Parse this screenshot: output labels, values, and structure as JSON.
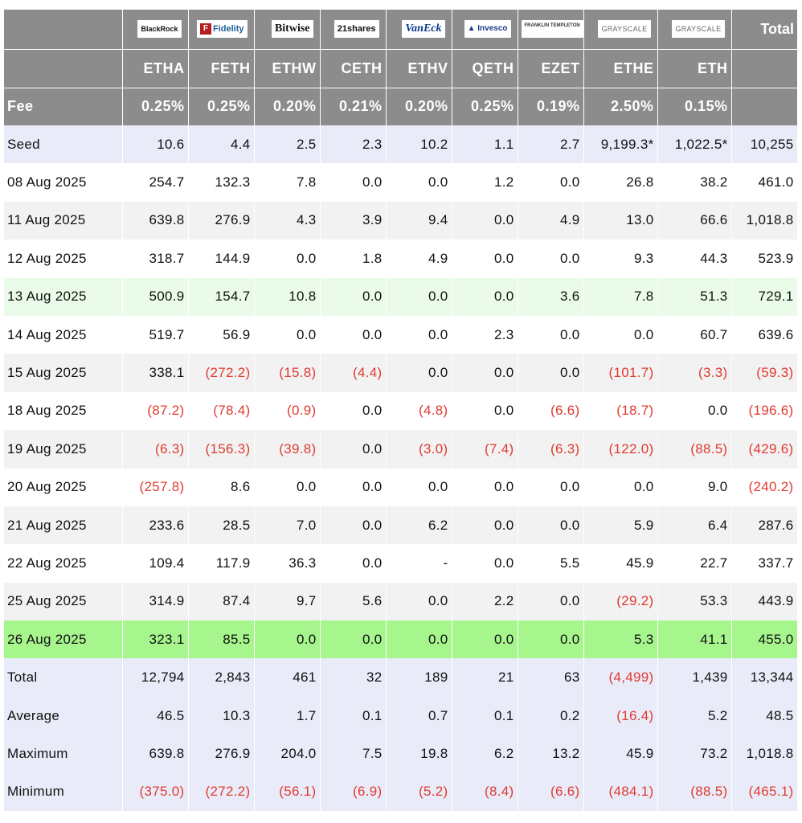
{
  "header": {
    "providers": [
      "BlackRock",
      "Fidelity",
      "Bitwise",
      "21shares",
      "VanEck",
      "Invesco",
      "FRANKLIN TEMPLETON",
      "GRAYSCALE",
      "GRAYSCALE"
    ],
    "total_label": "Total",
    "tickers": [
      "ETHA",
      "FETH",
      "ETHW",
      "CETH",
      "ETHV",
      "QETH",
      "EZET",
      "ETHE",
      "ETH"
    ],
    "fee_label": "Fee",
    "fees": [
      "0.25%",
      "0.25%",
      "0.20%",
      "0.21%",
      "0.20%",
      "0.25%",
      "0.19%",
      "2.50%",
      "0.15%"
    ]
  },
  "rows": [
    {
      "label": "Seed",
      "values": [
        "10.6",
        "4.4",
        "2.5",
        "2.3",
        "10.2",
        "1.1",
        "2.7",
        "9,199.3*",
        "1,022.5*",
        "10,255"
      ]
    },
    {
      "label": "08 Aug 2025",
      "values": [
        "254.7",
        "132.3",
        "7.8",
        "0.0",
        "0.0",
        "1.2",
        "0.0",
        "26.8",
        "38.2",
        "461.0"
      ]
    },
    {
      "label": "11 Aug 2025",
      "values": [
        "639.8",
        "276.9",
        "4.3",
        "3.9",
        "9.4",
        "0.0",
        "4.9",
        "13.0",
        "66.6",
        "1,018.8"
      ]
    },
    {
      "label": "12 Aug 2025",
      "values": [
        "318.7",
        "144.9",
        "0.0",
        "1.8",
        "4.9",
        "0.0",
        "0.0",
        "9.3",
        "44.3",
        "523.9"
      ]
    },
    {
      "label": "13 Aug 2025",
      "values": [
        "500.9",
        "154.7",
        "10.8",
        "0.0",
        "0.0",
        "0.0",
        "3.6",
        "7.8",
        "51.3",
        "729.1"
      ]
    },
    {
      "label": "14 Aug 2025",
      "values": [
        "519.7",
        "56.9",
        "0.0",
        "0.0",
        "0.0",
        "2.3",
        "0.0",
        "0.0",
        "60.7",
        "639.6"
      ]
    },
    {
      "label": "15 Aug 2025",
      "values": [
        "338.1",
        "(272.2)",
        "(15.8)",
        "(4.4)",
        "0.0",
        "0.0",
        "0.0",
        "(101.7)",
        "(3.3)",
        "(59.3)"
      ]
    },
    {
      "label": "18 Aug 2025",
      "values": [
        "(87.2)",
        "(78.4)",
        "(0.9)",
        "0.0",
        "(4.8)",
        "0.0",
        "(6.6)",
        "(18.7)",
        "0.0",
        "(196.6)"
      ]
    },
    {
      "label": "19 Aug 2025",
      "values": [
        "(6.3)",
        "(156.3)",
        "(39.8)",
        "0.0",
        "(3.0)",
        "(7.4)",
        "(6.3)",
        "(122.0)",
        "(88.5)",
        "(429.6)"
      ]
    },
    {
      "label": "20 Aug 2025",
      "values": [
        "(257.8)",
        "8.6",
        "0.0",
        "0.0",
        "0.0",
        "0.0",
        "0.0",
        "0.0",
        "9.0",
        "(240.2)"
      ]
    },
    {
      "label": "21 Aug 2025",
      "values": [
        "233.6",
        "28.5",
        "7.0",
        "0.0",
        "6.2",
        "0.0",
        "0.0",
        "5.9",
        "6.4",
        "287.6"
      ]
    },
    {
      "label": "22 Aug 2025",
      "values": [
        "109.4",
        "117.9",
        "36.3",
        "0.0",
        "-",
        "0.0",
        "5.5",
        "45.9",
        "22.7",
        "337.7"
      ]
    },
    {
      "label": "25 Aug 2025",
      "values": [
        "314.9",
        "87.4",
        "9.7",
        "5.6",
        "0.0",
        "2.2",
        "0.0",
        "(29.2)",
        "53.3",
        "443.9"
      ]
    },
    {
      "label": "26 Aug 2025",
      "values": [
        "323.1",
        "85.5",
        "0.0",
        "0.0",
        "0.0",
        "0.0",
        "0.0",
        "5.3",
        "41.1",
        "455.0"
      ]
    },
    {
      "label": "Total",
      "values": [
        "12,794",
        "2,843",
        "461",
        "32",
        "189",
        "21",
        "63",
        "(4,499)",
        "1,439",
        "13,344"
      ]
    },
    {
      "label": "Average",
      "values": [
        "46.5",
        "10.3",
        "1.7",
        "0.1",
        "0.7",
        "0.1",
        "0.2",
        "(16.4)",
        "5.2",
        "48.5"
      ]
    },
    {
      "label": "Maximum",
      "values": [
        "639.8",
        "276.9",
        "204.0",
        "7.5",
        "19.8",
        "6.2",
        "13.2",
        "45.9",
        "73.2",
        "1,018.8"
      ]
    },
    {
      "label": "Minimum",
      "values": [
        "(375.0)",
        "(272.2)",
        "(56.1)",
        "(6.9)",
        "(5.2)",
        "(8.4)",
        "(6.6)",
        "(484.1)",
        "(88.5)",
        "(465.1)"
      ]
    }
  ],
  "colors": {
    "header_bg": "#8c8c8c",
    "negative": "#e03a30",
    "seed_bg": "#e9ecf8",
    "stripe_bg": "#f2f2f2",
    "highlight_light": "#ebfbe9",
    "highlight_bright": "#a6f58d",
    "summary_bg": "#e9ecf8"
  }
}
